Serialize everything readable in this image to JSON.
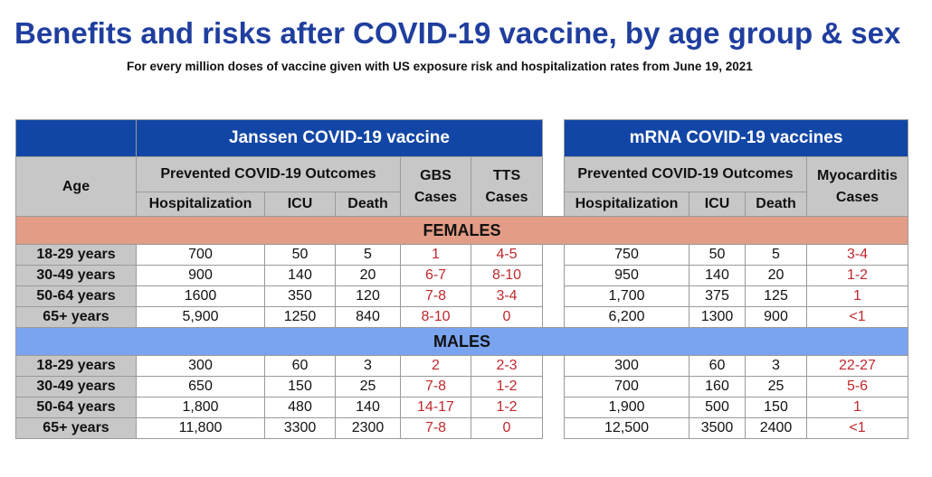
{
  "title": "Benefits and risks after COVID-19 vaccine, by age group & sex",
  "subtitle": "For every million doses of vaccine given with US exposure risk and hospitalization rates from June 19, 2021",
  "headers": {
    "janssen": "Janssen COVID-19 vaccine",
    "mrna": "mRNA COVID-19 vaccines",
    "age": "Age",
    "prevented": "Prevented COVID-19 Outcomes",
    "gbs": "GBS Cases",
    "tts": "TTS Cases",
    "myocarditis": "Myocarditis Cases",
    "hospitalization": "Hospitalization",
    "icu": "ICU",
    "death": "Death"
  },
  "sections": {
    "females": "FEMALES",
    "males": "MALES"
  },
  "females": [
    {
      "age": "18-29 years",
      "j_hosp": "700",
      "j_icu": "50",
      "j_death": "5",
      "gbs": "1",
      "tts": "4-5",
      "m_hosp": "750",
      "m_icu": "50",
      "m_death": "5",
      "myo": "3-4"
    },
    {
      "age": "30-49 years",
      "j_hosp": "900",
      "j_icu": "140",
      "j_death": "20",
      "gbs": "6-7",
      "tts": "8-10",
      "m_hosp": "950",
      "m_icu": "140",
      "m_death": "20",
      "myo": "1-2"
    },
    {
      "age": "50-64 years",
      "j_hosp": "1600",
      "j_icu": "350",
      "j_death": "120",
      "gbs": "7-8",
      "tts": "3-4",
      "m_hosp": "1,700",
      "m_icu": "375",
      "m_death": "125",
      "myo": "1"
    },
    {
      "age": "65+ years",
      "j_hosp": "5,900",
      "j_icu": "1250",
      "j_death": "840",
      "gbs": "8-10",
      "tts": "0",
      "m_hosp": "6,200",
      "m_icu": "1300",
      "m_death": "900",
      "myo": "<1"
    }
  ],
  "males": [
    {
      "age": "18-29 years",
      "j_hosp": "300",
      "j_icu": "60",
      "j_death": "3",
      "gbs": "2",
      "tts": "2-3",
      "m_hosp": "300",
      "m_icu": "60",
      "m_death": "3",
      "myo": "22-27"
    },
    {
      "age": "30-49 years",
      "j_hosp": "650",
      "j_icu": "150",
      "j_death": "25",
      "gbs": "7-8",
      "tts": "1-2",
      "m_hosp": "700",
      "m_icu": "160",
      "m_death": "25",
      "myo": "5-6"
    },
    {
      "age": "50-64 years",
      "j_hosp": "1,800",
      "j_icu": "480",
      "j_death": "140",
      "gbs": "14-17",
      "tts": "1-2",
      "m_hosp": "1,900",
      "m_icu": "500",
      "m_death": "150",
      "myo": "1"
    },
    {
      "age": "65+ years",
      "j_hosp": "11,800",
      "j_icu": "3300",
      "j_death": "2300",
      "gbs": "7-8",
      "tts": "0",
      "m_hosp": "12,500",
      "m_icu": "3500",
      "m_death": "2400",
      "myo": "<1"
    }
  ],
  "colors": {
    "title_blue": "#1f3e9e",
    "header_blue": "#1246a6",
    "header_gray": "#c7c7c7",
    "females_band": "#e39c86",
    "males_band": "#7aa4ef",
    "risk_red": "#c0282d"
  }
}
